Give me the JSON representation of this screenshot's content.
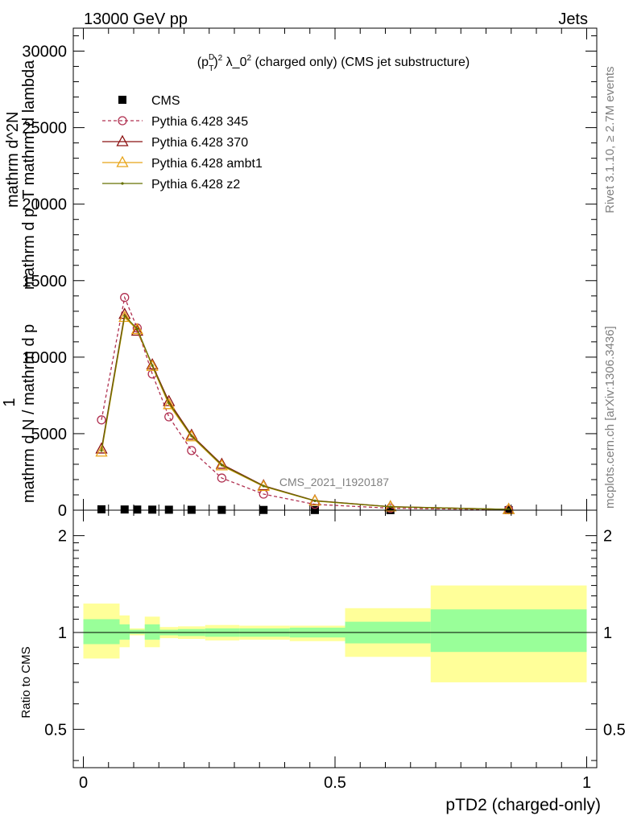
{
  "header": {
    "left": "13000 GeV pp",
    "right": "Jets"
  },
  "side_text": {
    "rivet": "Rivet 3.1.10, ≥ 2.7M events",
    "mcplots": "mcplots.cern.ch [arXiv:1306.3436]"
  },
  "chart_data": [
    {
      "type": "line",
      "title": "(p_T^D)^2 λ_0^2 (charged only) (CMS jet substructure)",
      "title_parts": {
        "p": "(p",
        "sub": "T",
        "sup": "D",
        "close": ")",
        "sq": "2",
        "mid": " λ_0",
        "sq2": "2",
        "rest": " (charged only) (CMS jet substructure)"
      },
      "ylabel_lines": [
        "mathrm d N / mathrm d p",
        "mathrm d",
        "mathrm d",
        "N",
        "p",
        "T",
        "1",
        "mathrm d p",
        "mathrm d lambda",
        "T"
      ],
      "ylabel_main": "mathrm d N / mathrm d p",
      "ylabel_num": "mathrm d^2N",
      "ylabel_den": "mathrm d p_T mathrm d lambda",
      "ylabel_one": "1",
      "ylim": [
        0,
        31500
      ],
      "xlim": [
        -0.02,
        1.02
      ],
      "yticks": [
        0,
        5000,
        10000,
        15000,
        20000,
        25000,
        30000
      ],
      "ytick_labels": [
        "0",
        "5000",
        "10000",
        "15000",
        "20000",
        "25000",
        "30000"
      ],
      "watermark": "CMS_2021_I1920187",
      "legend_position": "top-left",
      "x": [
        0.036,
        0.082,
        0.107,
        0.137,
        0.17,
        0.215,
        0.275,
        0.358,
        0.46,
        0.61,
        0.845
      ],
      "series": [
        {
          "name": "CMS",
          "marker": "square",
          "color": "#000000",
          "values": [
            55,
            45,
            40,
            35,
            30,
            25,
            20,
            15,
            10,
            5,
            2
          ]
        },
        {
          "name": "Pythia 6.428 345",
          "marker": "circle-open",
          "color": "#b03050",
          "dash": true,
          "values": [
            5900,
            13900,
            11900,
            8900,
            6100,
            3900,
            2100,
            1050,
            380,
            130,
            30
          ]
        },
        {
          "name": "Pythia 6.428 370",
          "marker": "triangle-open",
          "color": "#8b1010",
          "values": [
            4000,
            12800,
            11700,
            9500,
            7100,
            4900,
            3000,
            1600,
            620,
            230,
            50
          ]
        },
        {
          "name": "Pythia 6.428 ambt1",
          "marker": "triangle-open",
          "color": "#e8a317",
          "values": [
            3800,
            12600,
            11800,
            9400,
            6900,
            4800,
            2900,
            1550,
            600,
            220,
            50
          ]
        },
        {
          "name": "Pythia 6.428 z2",
          "marker": "dot",
          "color": "#667000",
          "values": [
            3900,
            12700,
            11850,
            9450,
            7000,
            4850,
            2950,
            1580,
            610,
            225,
            50
          ]
        }
      ]
    },
    {
      "type": "area",
      "ylabel": "Ratio to CMS",
      "xlabel": "pTD2 (charged-only)",
      "ylim": [
        0.38,
        2.4
      ],
      "xlim": [
        -0.02,
        1.02
      ],
      "scale": "log",
      "yticks": [
        0.5,
        1,
        2
      ],
      "ytick_labels": [
        "0.5",
        "1",
        "2"
      ],
      "xticks": [
        0,
        0.5,
        1
      ],
      "xtick_labels": [
        "0",
        "0.5",
        "1"
      ],
      "bins": [
        {
          "lo": 0.0,
          "hi": 0.072,
          "in_lo": 0.92,
          "in_hi": 1.1,
          "out_lo": 0.83,
          "out_hi": 1.23
        },
        {
          "lo": 0.072,
          "hi": 0.092,
          "in_lo": 0.95,
          "in_hi": 1.06,
          "out_lo": 0.9,
          "out_hi": 1.13
        },
        {
          "lo": 0.092,
          "hi": 0.122,
          "in_lo": 0.99,
          "in_hi": 1.02,
          "out_lo": 0.98,
          "out_hi": 1.03
        },
        {
          "lo": 0.122,
          "hi": 0.152,
          "in_lo": 0.95,
          "in_hi": 1.06,
          "out_lo": 0.9,
          "out_hi": 1.12
        },
        {
          "lo": 0.152,
          "hi": 0.188,
          "in_lo": 0.98,
          "in_hi": 1.02,
          "out_lo": 0.96,
          "out_hi": 1.04
        },
        {
          "lo": 0.188,
          "hi": 0.242,
          "in_lo": 0.975,
          "in_hi": 1.025,
          "out_lo": 0.955,
          "out_hi": 1.045
        },
        {
          "lo": 0.242,
          "hi": 0.31,
          "in_lo": 0.97,
          "in_hi": 1.03,
          "out_lo": 0.945,
          "out_hi": 1.055
        },
        {
          "lo": 0.31,
          "hi": 0.41,
          "in_lo": 0.97,
          "in_hi": 1.03,
          "out_lo": 0.95,
          "out_hi": 1.05
        },
        {
          "lo": 0.41,
          "hi": 0.52,
          "in_lo": 0.965,
          "in_hi": 1.035,
          "out_lo": 0.94,
          "out_hi": 1.05
        },
        {
          "lo": 0.52,
          "hi": 0.69,
          "in_lo": 0.925,
          "in_hi": 1.08,
          "out_lo": 0.84,
          "out_hi": 1.19
        },
        {
          "lo": 0.69,
          "hi": 1.0,
          "in_lo": 0.87,
          "in_hi": 1.18,
          "out_lo": 0.7,
          "out_hi": 1.4
        }
      ],
      "band_colors": {
        "inner": "#99ff99",
        "outer": "#ffff99"
      },
      "reference_value": 1
    }
  ]
}
